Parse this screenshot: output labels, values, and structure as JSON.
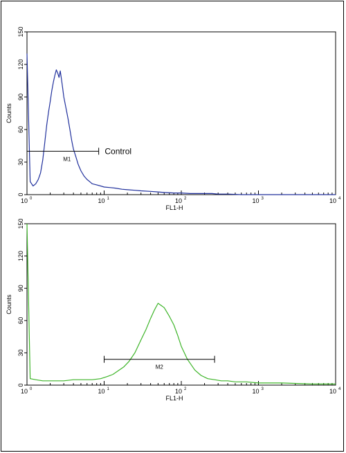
{
  "chart_data": [
    {
      "type": "line",
      "title": "",
      "xlabel": "FL1-H",
      "ylabel": "Counts",
      "xscale": "log",
      "xlim": [
        1,
        10000
      ],
      "ylim": [
        0,
        150
      ],
      "yticks": [
        0,
        30,
        60,
        90,
        120,
        150
      ],
      "xticks": [
        {
          "base": "10",
          "exp": "0"
        },
        {
          "base": "10",
          "exp": "1"
        },
        {
          "base": "10",
          "exp": "2"
        },
        {
          "base": "10",
          "exp": "3"
        },
        {
          "base": "10",
          "exp": "4"
        }
      ],
      "grid": false,
      "series": [
        {
          "color": "#1f2f9c",
          "x": [
            1.0,
            1.1,
            1.2,
            1.3,
            1.4,
            1.5,
            1.6,
            1.7,
            1.8,
            1.9,
            2.0,
            2.1,
            2.2,
            2.3,
            2.4,
            2.5,
            2.6,
            2.7,
            2.8,
            2.9,
            3.0,
            3.2,
            3.4,
            3.6,
            3.8,
            4.0,
            4.3,
            4.6,
            5.0,
            5.5,
            6.0,
            6.5,
            7.0,
            8.0,
            9.0,
            10,
            12,
            14,
            17,
            20,
            25,
            30,
            40,
            50,
            60,
            80,
            100,
            130,
            160,
            200,
            250,
            300,
            400,
            600,
            1000,
            2000,
            5000,
            10000
          ],
          "y": [
            130,
            12,
            8,
            10,
            14,
            20,
            32,
            48,
            64,
            76,
            86,
            96,
            104,
            110,
            115,
            112,
            108,
            114,
            106,
            98,
            90,
            80,
            70,
            60,
            50,
            42,
            35,
            28,
            22,
            17,
            14,
            12,
            10,
            9,
            8,
            7,
            6.5,
            6,
            5,
            4.5,
            4,
            3.5,
            3,
            2.5,
            2,
            1.5,
            1.5,
            1,
            1,
            1,
            1,
            0.5,
            0.5,
            0,
            0,
            0,
            0,
            0
          ]
        }
      ],
      "marker": {
        "label": "M1",
        "x_start": 1,
        "x_end": 8.5,
        "y": 40
      },
      "annotation": {
        "text": "Control",
        "x": 9,
        "y": 40
      }
    },
    {
      "type": "line",
      "title": "",
      "xlabel": "FL1-H",
      "ylabel": "Counts",
      "xscale": "log",
      "xlim": [
        1,
        10000
      ],
      "ylim": [
        0,
        150
      ],
      "yticks": [
        0,
        30,
        60,
        90,
        120,
        150
      ],
      "xticks": [
        {
          "base": "10",
          "exp": "0"
        },
        {
          "base": "10",
          "exp": "1"
        },
        {
          "base": "10",
          "exp": "2"
        },
        {
          "base": "10",
          "exp": "3"
        },
        {
          "base": "10",
          "exp": "4"
        }
      ],
      "grid": false,
      "series": [
        {
          "color": "#3cb427",
          "x": [
            1.0,
            1.1,
            1.3,
            1.6,
            2,
            3,
            4,
            5,
            7,
            9,
            11,
            13,
            15,
            18,
            21,
            25,
            30,
            35,
            40,
            45,
            50,
            55,
            60,
            70,
            80,
            90,
            100,
            120,
            150,
            180,
            220,
            270,
            330,
            400,
            500,
            700,
            1000,
            2000,
            5000,
            10000
          ],
          "y": [
            150,
            6,
            5,
            4,
            4,
            4,
            5,
            5,
            5,
            6,
            8,
            10,
            13,
            17,
            22,
            30,
            42,
            52,
            62,
            70,
            76,
            74,
            72,
            64,
            56,
            46,
            36,
            24,
            14,
            9,
            6,
            5,
            4,
            4,
            3,
            3,
            2,
            2,
            1,
            1
          ]
        }
      ],
      "marker": {
        "label": "M2",
        "x_start": 10,
        "x_end": 270,
        "y": 24
      }
    }
  ]
}
